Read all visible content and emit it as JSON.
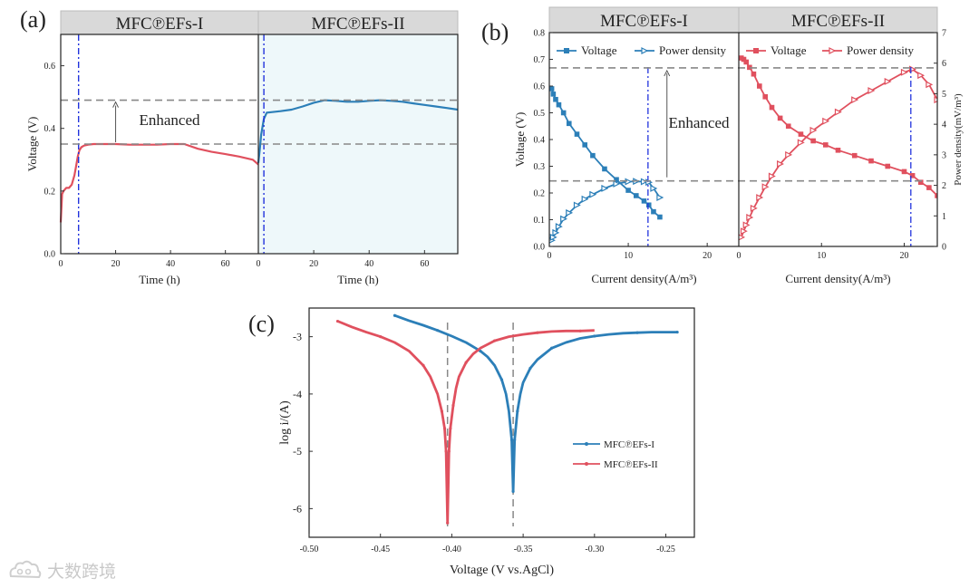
{
  "panel_labels": {
    "a": "(a)",
    "b": "(b)",
    "c": "(c)"
  },
  "watermark": {
    "icon": "cloud-logo-icon",
    "text": "大数跨境"
  },
  "colors": {
    "red": "#e0505e",
    "blue": "#2c7fb8",
    "vline": "#2233dd",
    "shade": "#eef8fa",
    "strip": "#d9d9d9",
    "grey": "#888888"
  },
  "chart_data": [
    {
      "id": "a",
      "type": "line",
      "ylabel": "Voltage (V)",
      "ylim": [
        0,
        0.7
      ],
      "yticks": [
        0.0,
        0.2,
        0.4,
        0.6
      ],
      "annotation": "Enhanced",
      "reference_levels": [
        0.35,
        0.49
      ],
      "panels": [
        {
          "strip": "MFC℗EFs-I",
          "xlabel": "Time (h)",
          "xlim": [
            0,
            72
          ],
          "xticks": [
            0,
            20,
            40,
            60
          ],
          "marker_time": 6.5,
          "series": [
            {
              "name": "MFC℗EFs-I",
              "color": "red",
              "x": [
                0,
                0.5,
                1,
                2,
                3,
                4,
                5,
                5.6,
                6.2,
                6.8,
                7.5,
                8.5,
                10,
                12,
                15,
                20,
                25,
                30,
                35,
                40,
                45,
                50,
                55,
                60,
                65,
                70,
                72
              ],
              "y": [
                0.1,
                0.19,
                0.2,
                0.21,
                0.21,
                0.22,
                0.25,
                0.28,
                0.31,
                0.33,
                0.34,
                0.345,
                0.348,
                0.35,
                0.35,
                0.35,
                0.348,
                0.348,
                0.348,
                0.35,
                0.35,
                0.335,
                0.325,
                0.318,
                0.31,
                0.3,
                0.285
              ]
            }
          ]
        },
        {
          "strip": "MFC℗EFs-II",
          "xlabel": "Time (h)",
          "xlim": [
            0,
            72
          ],
          "xticks": [
            0,
            20,
            40,
            60
          ],
          "marker_time": 2.0,
          "series": [
            {
              "name": "MFC℗EFs-II",
              "color": "blue",
              "x": [
                0,
                0.5,
                1,
                2,
                3,
                5,
                8,
                12,
                16,
                20,
                24,
                28,
                32,
                36,
                40,
                44,
                48,
                52,
                56,
                60,
                64,
                68,
                72
              ],
              "y": [
                0.29,
                0.33,
                0.38,
                0.43,
                0.45,
                0.452,
                0.455,
                0.46,
                0.47,
                0.482,
                0.49,
                0.488,
                0.485,
                0.485,
                0.488,
                0.49,
                0.488,
                0.485,
                0.48,
                0.475,
                0.47,
                0.465,
                0.46
              ]
            }
          ]
        }
      ]
    },
    {
      "id": "b",
      "type": "line",
      "ylabel": "Voltage (V)",
      "ylabel_right": "Power density(mV/m³)",
      "ylim": [
        0,
        0.8
      ],
      "ylim_right": [
        0,
        7
      ],
      "yticks": [
        0.0,
        0.1,
        0.2,
        0.3,
        0.4,
        0.5,
        0.6,
        0.7,
        0.8
      ],
      "yticks_right": [
        0,
        1,
        2,
        3,
        4,
        5,
        6,
        7
      ],
      "annotation": "Enhanced",
      "reference_levels": [
        0.245,
        0.668
      ],
      "panels": [
        {
          "strip": "MFC℗EFs-I",
          "xlabel": "Current density(A/m³)",
          "xlim": [
            0,
            24
          ],
          "xticks": [
            0,
            10,
            20
          ],
          "marker_x": 12.5,
          "legend": [
            "Voltage",
            "Power density"
          ],
          "series": [
            {
              "name": "Voltage",
              "color": "blue",
              "marker": "square",
              "x": [
                0.3,
                0.5,
                0.8,
                1.2,
                1.8,
                2.5,
                3.5,
                4.5,
                5.5,
                7,
                8.5,
                10,
                11,
                12,
                12.6,
                13.2,
                14
              ],
              "y": [
                0.59,
                0.57,
                0.55,
                0.53,
                0.5,
                0.46,
                0.42,
                0.38,
                0.34,
                0.29,
                0.25,
                0.21,
                0.19,
                0.17,
                0.155,
                0.13,
                0.11
              ]
            },
            {
              "name": "Power density",
              "color": "blue",
              "marker": "triangle",
              "x": [
                0.3,
                0.5,
                0.8,
                1.2,
                1.8,
                2.5,
                3.5,
                4.5,
                5.5,
                7,
                8.5,
                10,
                11,
                12,
                12.6,
                13.2,
                14
              ],
              "y": [
                0.2,
                0.3,
                0.45,
                0.65,
                0.9,
                1.1,
                1.35,
                1.55,
                1.7,
                1.9,
                2.05,
                2.12,
                2.13,
                2.12,
                2.1,
                1.9,
                1.6
              ]
            }
          ]
        },
        {
          "strip": "MFC℗EFs-II",
          "xlabel": "Current density(A/m³)",
          "xlim": [
            0,
            24
          ],
          "xticks": [
            0,
            10,
            20
          ],
          "marker_x": 20.8,
          "legend": [
            "Voltage",
            "Power density"
          ],
          "series": [
            {
              "name": "Voltage",
              "color": "red",
              "marker": "square",
              "x": [
                0.3,
                0.6,
                0.9,
                1.3,
                1.8,
                2.5,
                3.2,
                4.0,
                5.0,
                6.0,
                7.5,
                9.0,
                10.5,
                12,
                14,
                16,
                18,
                20,
                21,
                22,
                23,
                24
              ],
              "y": [
                0.705,
                0.7,
                0.69,
                0.67,
                0.645,
                0.6,
                0.56,
                0.52,
                0.48,
                0.45,
                0.42,
                0.395,
                0.38,
                0.36,
                0.34,
                0.32,
                0.3,
                0.28,
                0.265,
                0.24,
                0.22,
                0.19
              ]
            },
            {
              "name": "Power density",
              "color": "red",
              "marker": "triangle",
              "x": [
                0.3,
                0.6,
                0.9,
                1.3,
                1.8,
                2.5,
                3.2,
                4.0,
                5.0,
                6.0,
                7.5,
                9.0,
                10.5,
                12,
                14,
                16,
                18,
                20,
                21,
                22,
                23,
                24
              ],
              "y": [
                0.3,
                0.5,
                0.7,
                0.95,
                1.25,
                1.6,
                1.95,
                2.3,
                2.7,
                3.0,
                3.4,
                3.8,
                4.1,
                4.4,
                4.8,
                5.1,
                5.4,
                5.7,
                5.8,
                5.6,
                5.3,
                4.8
              ]
            }
          ]
        }
      ]
    },
    {
      "id": "c",
      "type": "line",
      "xlabel": "Voltage (V vs.AgCl)",
      "ylabel": "log i/(A)",
      "xlim": [
        -0.5,
        -0.23
      ],
      "ylim": [
        -6.5,
        -2.5
      ],
      "xticks": [
        -0.5,
        -0.45,
        -0.4,
        -0.35,
        -0.3,
        -0.25
      ],
      "yticks": [
        -3,
        -4,
        -5,
        -6
      ],
      "markers_x": [
        -0.403,
        -0.357
      ],
      "series": [
        {
          "name": "MFC℗EFs-I",
          "color": "blue",
          "x": [
            -0.44,
            -0.43,
            -0.42,
            -0.41,
            -0.4,
            -0.39,
            -0.38,
            -0.375,
            -0.37,
            -0.365,
            -0.362,
            -0.36,
            -0.358,
            -0.357,
            -0.356,
            -0.354,
            -0.352,
            -0.35,
            -0.345,
            -0.34,
            -0.335,
            -0.33,
            -0.32,
            -0.31,
            -0.3,
            -0.29,
            -0.28,
            -0.27,
            -0.26,
            -0.25,
            -0.242
          ],
          "y": [
            -2.63,
            -2.72,
            -2.8,
            -2.89,
            -2.99,
            -3.1,
            -3.25,
            -3.35,
            -3.5,
            -3.75,
            -4.0,
            -4.3,
            -4.8,
            -5.7,
            -4.8,
            -4.3,
            -4.0,
            -3.8,
            -3.55,
            -3.4,
            -3.3,
            -3.2,
            -3.1,
            -3.03,
            -2.99,
            -2.96,
            -2.94,
            -2.93,
            -2.92,
            -2.92,
            -2.92
          ]
        },
        {
          "name": "MFC℗EFs-II",
          "color": "red",
          "x": [
            -0.48,
            -0.47,
            -0.46,
            -0.45,
            -0.44,
            -0.43,
            -0.42,
            -0.415,
            -0.41,
            -0.407,
            -0.405,
            -0.404,
            -0.403,
            -0.402,
            -0.401,
            -0.399,
            -0.397,
            -0.395,
            -0.39,
            -0.385,
            -0.38,
            -0.37,
            -0.36,
            -0.35,
            -0.34,
            -0.33,
            -0.32,
            -0.31,
            -0.3
          ],
          "y": [
            -2.73,
            -2.83,
            -2.92,
            -3.0,
            -3.1,
            -3.25,
            -3.5,
            -3.7,
            -4.0,
            -4.3,
            -4.6,
            -5.0,
            -6.25,
            -5.0,
            -4.6,
            -4.2,
            -3.9,
            -3.7,
            -3.45,
            -3.3,
            -3.2,
            -3.07,
            -3.0,
            -2.96,
            -2.93,
            -2.91,
            -2.9,
            -2.9,
            -2.89
          ]
        }
      ],
      "legend": [
        "MFC℗EFs-I",
        "MFC℗EFs-II"
      ]
    }
  ]
}
